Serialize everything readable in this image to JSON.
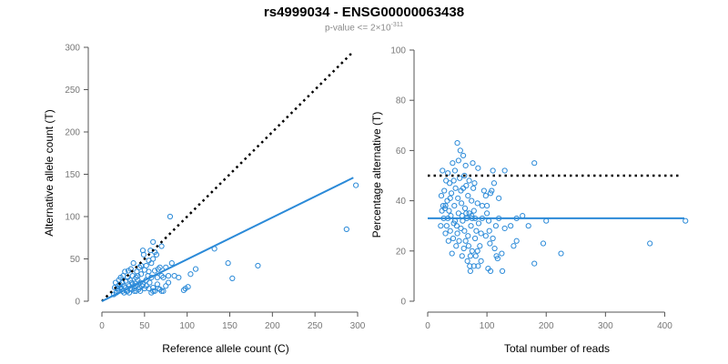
{
  "header": {
    "title": "rs4999034 - ENSG00000063438",
    "pvalue_prefix": "p-value <= 2×10",
    "pvalue_exponent": "-311"
  },
  "colors": {
    "points": "#2b8ad8",
    "fit_line": "#2b8ad8",
    "reference_line": "#000000",
    "axis": "#555555",
    "tick_label": "#777777"
  },
  "chart_data": [
    {
      "type": "scatter",
      "name": "left",
      "xlabel": "Reference allele count (C)",
      "ylabel": "Alternative allele count (T)",
      "xlim": [
        0,
        300
      ],
      "ylim": [
        0,
        300
      ],
      "xticks": [
        0,
        50,
        100,
        150,
        200,
        250,
        300
      ],
      "yticks": [
        0,
        50,
        100,
        150,
        200,
        250,
        300
      ],
      "grid": false,
      "reference_line": {
        "style": "dotted",
        "from": [
          0,
          0
        ],
        "to": [
          295,
          295
        ]
      },
      "fit_line": {
        "style": "solid",
        "from": [
          0,
          0
        ],
        "to": [
          295,
          146
        ]
      },
      "points": [
        [
          298,
          137
        ],
        [
          287,
          85
        ],
        [
          183,
          42
        ],
        [
          153,
          27
        ],
        [
          148,
          45
        ],
        [
          132,
          62
        ],
        [
          110,
          38
        ],
        [
          104,
          32
        ],
        [
          101,
          17
        ],
        [
          98,
          15
        ],
        [
          96,
          13
        ],
        [
          80,
          100
        ],
        [
          78,
          30
        ],
        [
          70,
          65
        ],
        [
          66,
          38
        ],
        [
          64,
          55
        ],
        [
          62,
          58
        ],
        [
          60,
          70
        ],
        [
          58,
          45
        ],
        [
          56,
          22
        ],
        [
          55,
          48
        ],
        [
          54,
          30
        ],
        [
          52,
          25
        ],
        [
          50,
          37
        ],
        [
          49,
          55
        ],
        [
          48,
          60
        ],
        [
          47,
          18
        ],
        [
          46,
          32
        ],
        [
          45,
          12
        ],
        [
          44,
          40
        ],
        [
          43,
          14
        ],
        [
          42,
          25
        ],
        [
          41,
          35
        ],
        [
          40,
          28
        ],
        [
          39,
          21
        ],
        [
          38,
          15
        ],
        [
          37,
          45
        ],
        [
          36,
          30
        ],
        [
          35,
          14
        ],
        [
          34,
          38
        ],
        [
          33,
          25
        ],
        [
          32,
          18
        ],
        [
          31,
          36
        ],
        [
          30,
          28
        ],
        [
          29,
          12
        ],
        [
          28,
          24
        ],
        [
          27,
          35
        ],
        [
          26,
          18
        ],
        [
          25,
          30
        ],
        [
          24,
          22
        ],
        [
          23,
          14
        ],
        [
          22,
          28
        ],
        [
          21,
          20
        ],
        [
          20,
          12
        ],
        [
          19,
          18
        ],
        [
          18,
          15
        ],
        [
          17,
          10
        ],
        [
          16,
          22
        ],
        [
          15,
          16
        ],
        [
          14,
          8
        ],
        [
          55,
          15
        ],
        [
          58,
          10
        ],
        [
          60,
          16
        ],
        [
          62,
          12
        ],
        [
          65,
          20
        ],
        [
          68,
          14
        ],
        [
          70,
          12
        ],
        [
          72,
          28
        ],
        [
          75,
          18
        ],
        [
          82,
          45
        ],
        [
          85,
          30
        ],
        [
          90,
          28
        ],
        [
          65,
          28
        ],
        [
          62,
          36
        ],
        [
          52,
          42
        ],
        [
          48,
          20
        ],
        [
          36,
          20
        ],
        [
          30,
          12
        ],
        [
          26,
          10
        ],
        [
          28,
          16
        ],
        [
          32,
          10
        ],
        [
          24,
          12
        ],
        [
          22,
          16
        ],
        [
          20,
          25
        ],
        [
          45,
          22
        ],
        [
          50,
          15
        ],
        [
          55,
          35
        ],
        [
          58,
          28
        ],
        [
          42,
          30
        ],
        [
          38,
          12
        ],
        [
          35,
          22
        ],
        [
          33,
          15
        ],
        [
          40,
          18
        ],
        [
          46,
          42
        ],
        [
          52,
          18
        ],
        [
          60,
          12
        ],
        [
          66,
          15
        ],
        [
          72,
          12
        ],
        [
          68,
          40
        ],
        [
          60,
          50
        ],
        [
          57,
          60
        ],
        [
          70,
          30
        ],
        [
          75,
          40
        ],
        [
          78,
          22
        ],
        [
          40,
          12
        ],
        [
          44,
          16
        ]
      ]
    },
    {
      "type": "scatter",
      "name": "right",
      "xlabel": "Total number of reads",
      "ylabel": "Percentage alternative (T)",
      "xlim": [
        0,
        430
      ],
      "ylim": [
        0,
        100
      ],
      "xticks": [
        0,
        100,
        200,
        300,
        400
      ],
      "yticks": [
        0,
        20,
        40,
        60,
        80,
        100
      ],
      "grid": false,
      "reference_line": {
        "style": "dotted",
        "y": 50
      },
      "fit_line": {
        "style": "solid",
        "y": 33
      },
      "points": [
        [
          435,
          32
        ],
        [
          375,
          23
        ],
        [
          225,
          19
        ],
        [
          200,
          32
        ],
        [
          195,
          23
        ],
        [
          180,
          55
        ],
        [
          180,
          15
        ],
        [
          170,
          30
        ],
        [
          160,
          34
        ],
        [
          150,
          24
        ],
        [
          145,
          22
        ],
        [
          140,
          30
        ],
        [
          130,
          52
        ],
        [
          125,
          19
        ],
        [
          120,
          41
        ],
        [
          118,
          17
        ],
        [
          115,
          30
        ],
        [
          113,
          21
        ],
        [
          112,
          47
        ],
        [
          110,
          52
        ],
        [
          108,
          44
        ],
        [
          106,
          12
        ],
        [
          105,
          23
        ],
        [
          104,
          28
        ],
        [
          103,
          32
        ],
        [
          102,
          13
        ],
        [
          100,
          35
        ],
        [
          98,
          42
        ],
        [
          95,
          44
        ],
        [
          92,
          38
        ],
        [
          90,
          27
        ],
        [
          88,
          22
        ],
        [
          86,
          31
        ],
        [
          85,
          53
        ],
        [
          84,
          39
        ],
        [
          82,
          28
        ],
        [
          81,
          18
        ],
        [
          80,
          25
        ],
        [
          79,
          47
        ],
        [
          78,
          36
        ],
        [
          77,
          45
        ],
        [
          76,
          55
        ],
        [
          75,
          20
        ],
        [
          74,
          40
        ],
        [
          73,
          30
        ],
        [
          72,
          12
        ],
        [
          71,
          14
        ],
        [
          70,
          48
        ],
        [
          69,
          22
        ],
        [
          68,
          26
        ],
        [
          67,
          16
        ],
        [
          66,
          33
        ],
        [
          65,
          35
        ],
        [
          64,
          54
        ],
        [
          63,
          37
        ],
        [
          62,
          28
        ],
        [
          61,
          21
        ],
        [
          60,
          45
        ],
        [
          59,
          32
        ],
        [
          58,
          18
        ],
        [
          57,
          39
        ],
        [
          56,
          29
        ],
        [
          55,
          60
        ],
        [
          54,
          49
        ],
        [
          53,
          24
        ],
        [
          52,
          35
        ],
        [
          51,
          41
        ],
        [
          50,
          63
        ],
        [
          49,
          30
        ],
        [
          48,
          22
        ],
        [
          47,
          45
        ],
        [
          46,
          52
        ],
        [
          45,
          38
        ],
        [
          44,
          31
        ],
        [
          43,
          25
        ],
        [
          42,
          55
        ],
        [
          41,
          19
        ],
        [
          40,
          43
        ],
        [
          39,
          34
        ],
        [
          38,
          28
        ],
        [
          37,
          47
        ],
        [
          36,
          36
        ],
        [
          35,
          24
        ],
        [
          34,
          51
        ],
        [
          33,
          40
        ],
        [
          32,
          30
        ],
        [
          31,
          48
        ],
        [
          30,
          27
        ],
        [
          29,
          37
        ],
        [
          28,
          44
        ],
        [
          27,
          33
        ],
        [
          26,
          38
        ],
        [
          25,
          52
        ],
        [
          24,
          36
        ],
        [
          23,
          42
        ],
        [
          22,
          30
        ],
        [
          60,
          58
        ],
        [
          65,
          46
        ],
        [
          70,
          35
        ],
        [
          75,
          33
        ],
        [
          80,
          33
        ],
        [
          85,
          14
        ],
        [
          90,
          16
        ],
        [
          100,
          38
        ],
        [
          110,
          25
        ],
        [
          120,
          33
        ],
        [
          130,
          29
        ],
        [
          150,
          33
        ],
        [
          56,
          44
        ],
        [
          62,
          50
        ],
        [
          68,
          42
        ],
        [
          74,
          34
        ],
        [
          50,
          27
        ],
        [
          44,
          48
        ],
        [
          38,
          41
        ],
        [
          34,
          33
        ],
        [
          30,
          38
        ],
        [
          46,
          32
        ],
        [
          52,
          56
        ],
        [
          58,
          34
        ],
        [
          64,
          24
        ],
        [
          72,
          18
        ],
        [
          78,
          14
        ],
        [
          84,
          20
        ],
        [
          92,
          33
        ],
        [
          98,
          26
        ],
        [
          106,
          43
        ],
        [
          116,
          18
        ],
        [
          126,
          12
        ]
      ]
    }
  ]
}
